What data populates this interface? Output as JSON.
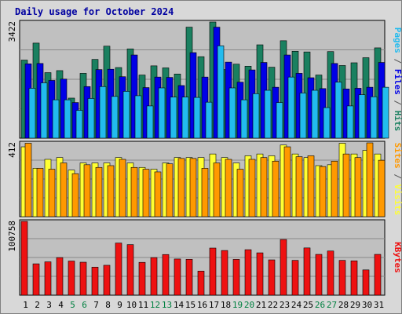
{
  "chart_data": {
    "type": "bar",
    "title": "Daily usage for October 2024",
    "categories": [
      "1",
      "2",
      "3",
      "4",
      "5",
      "6",
      "7",
      "8",
      "9",
      "10",
      "11",
      "12",
      "13",
      "14",
      "15",
      "16",
      "17",
      "18",
      "19",
      "20",
      "21",
      "22",
      "23",
      "24",
      "25",
      "26",
      "27",
      "28",
      "29",
      "30",
      "31"
    ],
    "weekend_days": [
      "5",
      "6",
      "12",
      "13",
      "19",
      "20",
      "26",
      "27"
    ],
    "colors": {
      "hits": "#1a8060",
      "files": "#0000e6",
      "pages": "#22bbee",
      "visits": "#ffff33",
      "sites": "#ff9900",
      "kbytes": "#ee1111",
      "plot_bg": "#c0c0c0",
      "frame_bg": "#d8d8d8",
      "title": "#0000a0",
      "weekend": "#008040",
      "weekday": "#000000"
    },
    "panels": [
      {
        "name": "hits-files-pages",
        "ylabel_max": "3422",
        "ymax": 3422,
        "axis_label_parts": [
          {
            "text": "Pages",
            "color": "#22bbee"
          },
          {
            "text": " / ",
            "color": "#555555"
          },
          {
            "text": "Files",
            "color": "#0000e6"
          },
          {
            "text": " / ",
            "color": "#555555"
          },
          {
            "text": "Hits",
            "color": "#1a8060"
          }
        ],
        "series": [
          {
            "name": "Hits",
            "color": "#1a8060",
            "values": [
              2300,
              2800,
              1930,
              1990,
              1180,
              1910,
              2320,
              2710,
              2080,
              2630,
              1860,
              2130,
              2070,
              1890,
              3270,
              2400,
              3540,
              2020,
              2180,
              2120,
              2750,
              2090,
              2870,
              2560,
              2540,
              1860,
              2550,
              2140,
              2220,
              2370,
              2660
            ]
          },
          {
            "name": "Files",
            "color": "#0000e6",
            "values": [
              2190,
              2200,
              1700,
              1740,
              1050,
              1520,
              2020,
              2030,
              1810,
              2450,
              1490,
              1800,
              1790,
              1550,
              2520,
              1800,
              3270,
              2240,
              1650,
              2010,
              2230,
              1500,
              2450,
              1910,
              1780,
              1460,
              2200,
              1450,
              1470,
              1500,
              2230
            ]
          },
          {
            "name": "Pages",
            "color": "#22bbee",
            "values": [
              1470,
              1630,
              1130,
              1130,
              820,
              1170,
              1520,
              1230,
              1380,
              1250,
              950,
              1480,
              1210,
              1210,
              1200,
              1060,
              2720,
              1480,
              1130,
              1310,
              1410,
              1050,
              1800,
              1330,
              1410,
              900,
              1650,
              950,
              1280,
              1220,
              1500
            ]
          }
        ]
      },
      {
        "name": "visits-sites",
        "ylabel_max": "412",
        "ymax": 412,
        "axis_label_parts": [
          {
            "text": "Sites",
            "color": "#ff9900"
          },
          {
            "text": " / ",
            "color": "#555555"
          },
          {
            "text": "Visits",
            "color": "#ffff33"
          }
        ],
        "series": [
          {
            "name": "Visits",
            "color": "#ffff33",
            "values": [
              390,
              270,
              320,
              330,
              260,
              300,
              300,
              300,
              330,
              300,
              275,
              265,
              300,
              330,
              330,
              330,
              350,
              330,
              300,
              340,
              350,
              340,
              400,
              350,
              330,
              285,
              290,
              410,
              350,
              370,
              350
            ]
          },
          {
            "name": "Sites",
            "color": "#ff9900",
            "values": [
              410,
              270,
              265,
              300,
              240,
              290,
              275,
              285,
              320,
              275,
              265,
              250,
              295,
              325,
              325,
              270,
              300,
              320,
              265,
              320,
              330,
              310,
              390,
              335,
              340,
              280,
              310,
              350,
              330,
              420,
              315
            ]
          }
        ]
      },
      {
        "name": "kbytes",
        "ylabel_max": "100758",
        "ymax": 100758,
        "axis_label_parts": [
          {
            "text": "KBytes",
            "color": "#ee1111"
          }
        ],
        "series": [
          {
            "name": "KBytes",
            "color": "#ee1111",
            "values": [
              100758,
              42800,
              45500,
              51300,
              46600,
              45000,
              38300,
              40800,
              71200,
              69000,
              44800,
              51300,
              55500,
              49400,
              49000,
              32900,
              64300,
              61000,
              48900,
              62100,
              57800,
              48200,
              76000,
              47500,
              64500,
              55700,
              60300,
              47500,
              46900,
              34500,
              55700
            ]
          }
        ]
      }
    ]
  }
}
